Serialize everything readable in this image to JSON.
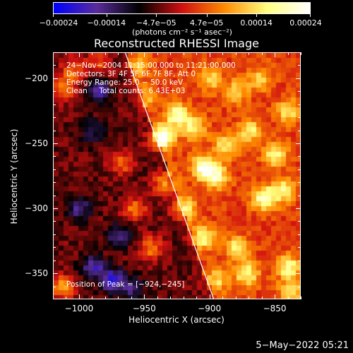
{
  "chart_data": {
    "type": "heatmap",
    "title": "Reconstructed RHESSI Image",
    "xlabel": "Heliocentric X (arcsec)",
    "ylabel": "Heliocentric Y (arcsec)",
    "xlim": [
      -1020,
      -830
    ],
    "ylim": [
      -370,
      -180
    ],
    "xticks": [
      -1000,
      -950,
      -900,
      -850
    ],
    "yticks": [
      -350,
      -300,
      -250,
      -200
    ],
    "xtick_labels": [
      "−1000",
      "−950",
      "−900",
      "−850"
    ],
    "ytick_labels": [
      "−350",
      "−300",
      "−250",
      "−200"
    ],
    "colorbar": {
      "range": [
        -0.00024,
        0.00024
      ],
      "tick_labels": [
        "−0.00024",
        "−0.00014",
        "−4.7e−05",
        "4.7e−05",
        "0.00014",
        "0.00024"
      ],
      "units": "(photons cm⁻² s⁻¹ asec⁻²)",
      "colors": [
        "#0000ff",
        "#5a2d9c",
        "#000000",
        "#d01010",
        "#ff8c00",
        "#ffff80",
        "#ffffff"
      ]
    },
    "annotations": {
      "time": "24−Nov−2004 11:15:00.000 to 11:21:00.000",
      "detectors": "Detectors: 3F 4F 5F 6F 7F 8F, Att 0",
      "energy": "Energy Range: 25.0 − 50.0 keV",
      "clean": "Clean     Total counts: 6.43E+03",
      "peak": "Position of Peak = [−924,−245]"
    },
    "limb_line": {
      "x": [
        -965,
        -897
      ],
      "y": [
        -180,
        -370
      ]
    },
    "blobs": [
      {
        "x": -937,
        "y": -245,
        "w": 1.0
      },
      {
        "x": -925,
        "y": -228,
        "w": 0.7
      },
      {
        "x": -912,
        "y": -238,
        "w": 0.55
      },
      {
        "x": -905,
        "y": -268,
        "w": 0.85
      },
      {
        "x": -895,
        "y": -275,
        "w": 0.6
      },
      {
        "x": -888,
        "y": -252,
        "w": 0.5
      },
      {
        "x": -870,
        "y": -240,
        "w": 0.55
      },
      {
        "x": -850,
        "y": -258,
        "w": 0.6
      },
      {
        "x": -840,
        "y": -225,
        "w": 0.5
      },
      {
        "x": -858,
        "y": -292,
        "w": 0.8
      },
      {
        "x": -843,
        "y": -285,
        "w": 0.55
      },
      {
        "x": -880,
        "y": -210,
        "w": 0.45
      },
      {
        "x": -862,
        "y": -200,
        "w": 0.4
      },
      {
        "x": -900,
        "y": -200,
        "w": 0.45
      },
      {
        "x": -920,
        "y": -300,
        "w": 0.6
      },
      {
        "x": -905,
        "y": -322,
        "w": 0.6
      },
      {
        "x": -880,
        "y": -330,
        "w": 0.55
      },
      {
        "x": -872,
        "y": -350,
        "w": 0.6
      },
      {
        "x": -840,
        "y": -345,
        "w": 0.65
      },
      {
        "x": -838,
        "y": -365,
        "w": 0.5
      },
      {
        "x": -895,
        "y": -355,
        "w": 0.45
      },
      {
        "x": -945,
        "y": -330,
        "w": 0.45
      },
      {
        "x": -935,
        "y": -280,
        "w": 0.5
      },
      {
        "x": -968,
        "y": -265,
        "w": 0.4
      },
      {
        "x": -958,
        "y": -300,
        "w": 0.45
      },
      {
        "x": -1012,
        "y": -208,
        "w": 0.5
      },
      {
        "x": -1005,
        "y": -193,
        "w": 0.4
      },
      {
        "x": -1013,
        "y": -360,
        "w": 0.55
      },
      {
        "x": -985,
        "y": -188,
        "w": 0.35
      },
      {
        "x": -955,
        "y": -190,
        "w": 0.35
      },
      {
        "x": -950,
        "y": -215,
        "w": 0.35
      },
      {
        "x": -990,
        "y": -345,
        "w": -0.55
      },
      {
        "x": -975,
        "y": -355,
        "w": -0.7
      },
      {
        "x": -1000,
        "y": -300,
        "w": -0.45
      },
      {
        "x": -985,
        "y": -210,
        "w": -0.5
      },
      {
        "x": -990,
        "y": -240,
        "w": -0.35
      },
      {
        "x": -970,
        "y": -320,
        "w": -0.45
      },
      {
        "x": -960,
        "y": -362,
        "w": -0.4
      }
    ]
  },
  "footer": {
    "timestamp": "5−May−2022 05:21"
  }
}
